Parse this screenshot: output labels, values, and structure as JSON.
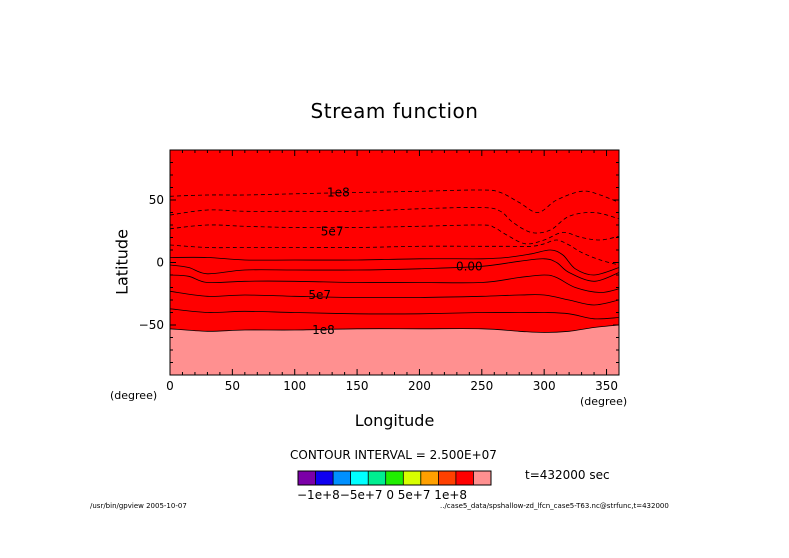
{
  "chart_data": {
    "type": "contour",
    "title": "Stream function",
    "xlabel": "Longitude",
    "ylabel": "Latitude",
    "xunit": "(degree)",
    "yunit": "(degree)",
    "xlim": [
      0,
      360
    ],
    "ylim": [
      -90,
      90
    ],
    "xticks": [
      0,
      50,
      100,
      150,
      200,
      250,
      300,
      350
    ],
    "yticks": [
      50,
      0,
      -50
    ],
    "contour_interval_label": "CONTOUR INTERVAL = 2.500E+07",
    "time_label": "t=432000 sec",
    "legend_text": "−1e+8−5e+7   0    5e+7  1e+8",
    "contour_labels": [
      {
        "text": "1e8",
        "x": 135,
        "y": 56
      },
      {
        "text": "5e7",
        "x": 130,
        "y": 25
      },
      {
        "text": "0.00",
        "x": 240,
        "y": -3
      },
      {
        "text": "5e7",
        "x": 120,
        "y": -26
      },
      {
        "text": "1e8",
        "x": 123,
        "y": -54
      }
    ],
    "band_colors": [
      "#7b00a8",
      "#0f00f0",
      "#0090ff",
      "#00ffff",
      "#00ee90",
      "#20ee00",
      "#d8ff00",
      "#ffa000",
      "#ff4000",
      "#ff0000",
      "#ff9090"
    ],
    "boundaries": [
      {
        "x": [
          0,
          30,
          60,
          100,
          150,
          200,
          250,
          265,
          280,
          295,
          310,
          330,
          345,
          360
        ],
        "y": [
          53,
          54,
          54,
          55,
          56,
          57,
          58,
          56,
          48,
          40,
          50,
          57,
          54,
          48
        ]
      },
      {
        "x": [
          0,
          30,
          60,
          100,
          150,
          200,
          250,
          265,
          275,
          290,
          305,
          320,
          340,
          360
        ],
        "y": [
          38,
          42,
          41,
          41,
          41,
          43,
          44,
          41,
          32,
          24,
          26,
          37,
          40,
          35
        ]
      },
      {
        "x": [
          0,
          30,
          60,
          100,
          150,
          200,
          250,
          260,
          270,
          285,
          300,
          315,
          330,
          345,
          360
        ],
        "y": [
          27,
          30,
          29,
          28,
          28,
          29,
          30,
          28,
          22,
          15,
          18,
          24,
          20,
          18,
          21
        ]
      },
      {
        "x": [
          0,
          30,
          60,
          100,
          150,
          200,
          250,
          270,
          290,
          300,
          310,
          320,
          330,
          345,
          360
        ],
        "y": [
          14,
          12,
          12,
          12,
          12,
          13,
          13,
          13,
          13,
          15,
          18,
          14,
          8,
          2,
          -2
        ]
      },
      {
        "x": [
          0,
          30,
          60,
          100,
          150,
          200,
          250,
          270,
          290,
          305,
          315,
          325,
          340,
          360
        ],
        "y": [
          4,
          4,
          2,
          2,
          2,
          3,
          3,
          4,
          7,
          10,
          6,
          -5,
          -10,
          -4
        ]
      },
      {
        "x": [
          0,
          15,
          30,
          60,
          100,
          150,
          200,
          250,
          280,
          300,
          310,
          320,
          340,
          360
        ],
        "y": [
          -2,
          -4,
          -9,
          -6,
          -6,
          -6,
          -5,
          -3,
          1,
          3,
          0,
          -8,
          -15,
          -8
        ]
      },
      {
        "x": [
          0,
          15,
          30,
          60,
          100,
          150,
          200,
          250,
          280,
          300,
          310,
          325,
          345,
          360
        ],
        "y": [
          -10,
          -11,
          -16,
          -15,
          -15,
          -16,
          -16,
          -16,
          -12,
          -10,
          -12,
          -20,
          -24,
          -21
        ]
      },
      {
        "x": [
          0,
          30,
          60,
          100,
          150,
          200,
          250,
          280,
          300,
          320,
          340,
          360
        ],
        "y": [
          -23,
          -27,
          -26,
          -27,
          -28,
          -28,
          -27,
          -26,
          -26,
          -30,
          -34,
          -30
        ]
      },
      {
        "x": [
          0,
          30,
          60,
          100,
          150,
          200,
          250,
          280,
          300,
          320,
          340,
          360
        ],
        "y": [
          -37,
          -40,
          -39,
          -40,
          -41,
          -41,
          -40,
          -40,
          -40,
          -41,
          -45,
          -44
        ]
      },
      {
        "x": [
          0,
          30,
          60,
          100,
          150,
          200,
          250,
          280,
          300,
          320,
          340,
          360
        ],
        "y": [
          -53,
          -55,
          -54,
          -54,
          -53,
          -53,
          -53,
          -55,
          -56,
          -55,
          -52,
          -50
        ]
      }
    ]
  },
  "footer": {
    "left": "/usr/bin/gpview  2005-10-07",
    "right": "../case5_data/spshallow-zd_lfcn_case5-T63.nc@strfunc,t=432000"
  }
}
